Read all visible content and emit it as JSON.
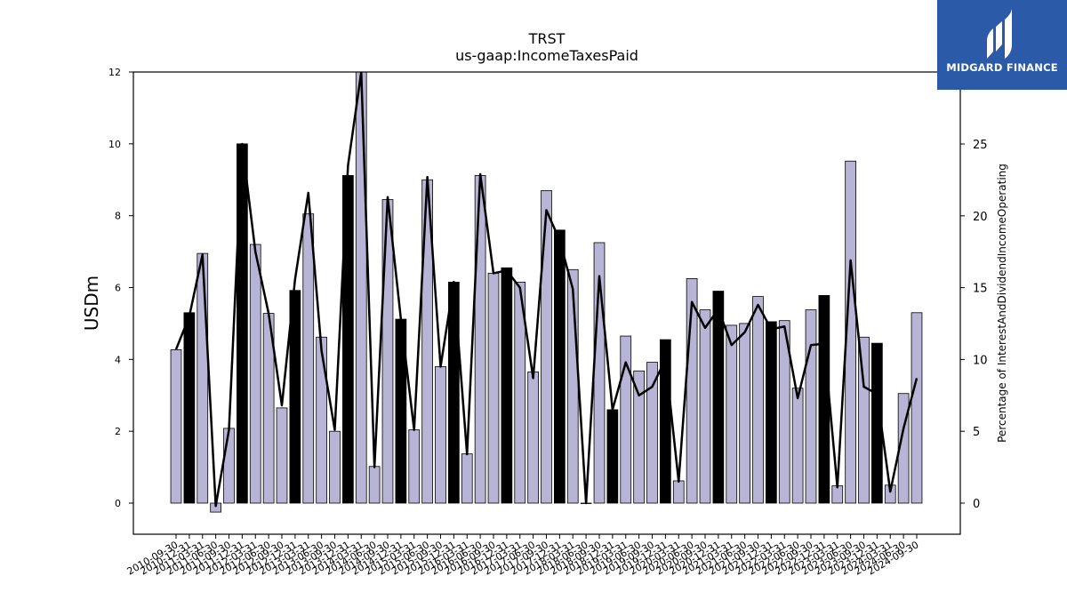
{
  "brand": {
    "name": "MIDGARD FINANCE",
    "bg_color": "#2b5aa8"
  },
  "chart_data": {
    "type": "bar",
    "title": "TRST",
    "subtitle": "us-gaap:IncomeTaxesPaid",
    "ylabel": "USDm",
    "y2label": "Percentage of InterestAndDividendIncomeOperating",
    "ylim": [
      -0.85,
      12
    ],
    "y2lim": [
      -2.1,
      30
    ],
    "yticks": [
      0,
      2,
      4,
      6,
      8,
      10,
      12
    ],
    "y2ticks": [
      0,
      5,
      10,
      15,
      20,
      25
    ],
    "categories": [
      "2010-09-30",
      "2010-12-31",
      "2011-03-31",
      "2011-06-30",
      "2011-09-30",
      "2011-12-31",
      "2012-03-31",
      "2012-06-30",
      "2012-09-30",
      "2012-12-31",
      "2013-03-31",
      "2013-06-30",
      "2013-09-30",
      "2013-12-31",
      "2014-03-31",
      "2014-06-30",
      "2014-09-30",
      "2014-12-31",
      "2015-03-31",
      "2015-06-30",
      "2015-09-30",
      "2015-12-31",
      "2016-03-31",
      "2016-06-30",
      "2016-09-30",
      "2016-12-31",
      "2017-03-31",
      "2017-06-30",
      "2017-09-30",
      "2017-12-31",
      "2018-03-31",
      "2018-06-30",
      "2018-09-30",
      "2018-12-31",
      "2019-03-31",
      "2019-06-30",
      "2019-09-30",
      "2019-12-31",
      "2020-03-31",
      "2020-06-30",
      "2020-09-30",
      "2020-12-31",
      "2021-03-31",
      "2021-06-30",
      "2021-09-30",
      "2021-12-31",
      "2022-03-31",
      "2022-06-30",
      "2022-09-30",
      "2022-12-31",
      "2023-03-31",
      "2023-06-30",
      "2023-09-30",
      "2023-12-31",
      "2024-03-31",
      "2024-06-30",
      "2024-09-30"
    ],
    "xtick_labels": [
      "2010-09-30",
      "2010-12-31",
      "2011-03-31",
      "2011-06-30",
      "2011-09-30",
      "2011-12-31",
      "2012-03-31",
      "2012-06-30",
      "2012-09-30",
      "2012-12-31",
      "2013-03-31",
      "2013-06-30",
      "2013-09-30",
      "2013-12-31",
      "2014-03-31",
      "2014-06-30",
      "2014-09-30",
      "2014-12-31",
      "2015-03-31",
      "2015-06-30",
      "2015-09-30",
      "2015-12-31",
      "2016-03-31",
      "2016-06-30",
      "2016-09-30",
      "2016-12-31",
      "2017-03-31",
      "2017-06-30",
      "2017-09-30",
      "2017-12-31",
      "2018-03-31",
      "2018-06-30",
      "2018-09-30",
      "2018-12-31",
      "2019-03-31",
      "2019-06-30",
      "2019-09-30",
      "2019-12-31",
      "2020-03-31",
      "2020-06-30",
      "2020-09-30",
      "2020-12-31",
      "2021-03-31",
      "2021-06-30",
      "2021-09-30",
      "2021-12-31",
      "2022-03-31",
      "2022-06-30",
      "2022-09-30",
      "2022-12-31",
      "2023-03-31",
      "2023-06-30",
      "2023-09-30",
      "2023-12-31",
      "2024-03-31",
      "2024-06-30",
      "2024-09-30"
    ],
    "series": [
      {
        "kind": "bar",
        "axis": "left",
        "values": [
          4.27,
          5.3,
          6.95,
          -0.25,
          2.08,
          10.0,
          7.2,
          5.28,
          2.65,
          5.92,
          8.05,
          4.62,
          2.0,
          9.12,
          12.0,
          1.02,
          8.45,
          5.12,
          2.04,
          9.0,
          3.8,
          6.15,
          1.37,
          9.12,
          6.4,
          6.55,
          6.15,
          3.65,
          8.7,
          7.6,
          6.5,
          0.0,
          7.25,
          2.6,
          4.65,
          3.68,
          3.92,
          4.55,
          0.62,
          6.25,
          5.38,
          5.9,
          4.95,
          5.0,
          5.75,
          5.05,
          5.08,
          3.2,
          5.38,
          5.78,
          0.48,
          9.52,
          4.62,
          4.45,
          0.5,
          3.05,
          5.3
        ],
        "highlight": [
          false,
          true,
          false,
          false,
          false,
          true,
          false,
          false,
          false,
          true,
          false,
          false,
          false,
          true,
          false,
          false,
          false,
          true,
          false,
          false,
          false,
          true,
          false,
          false,
          false,
          true,
          false,
          false,
          false,
          true,
          false,
          false,
          false,
          true,
          false,
          false,
          false,
          true,
          false,
          false,
          false,
          true,
          false,
          false,
          false,
          true,
          false,
          false,
          false,
          true,
          false,
          false,
          false,
          true,
          false,
          false,
          false
        ],
        "color": "#b8b4d6",
        "highlight_color": "#000000"
      },
      {
        "kind": "line",
        "axis": "right",
        "color": "#000000",
        "values": [
          10.7,
          13.0,
          17.3,
          -0.2,
          5.1,
          25.0,
          17.5,
          13.2,
          6.8,
          15.6,
          21.6,
          10.6,
          5.1,
          23.5,
          30.0,
          2.5,
          21.3,
          12.8,
          5.1,
          22.7,
          9.5,
          15.4,
          3.4,
          22.9,
          16.0,
          16.2,
          15.0,
          8.7,
          20.4,
          18.3,
          14.9,
          0.0,
          15.8,
          6.5,
          9.8,
          7.5,
          8.1,
          10.0,
          1.5,
          14.0,
          12.2,
          13.5,
          11.0,
          11.9,
          13.8,
          12.1,
          12.3,
          7.3,
          11.0,
          11.1,
          1.1,
          16.9,
          8.1,
          7.6,
          0.8,
          5.2,
          8.7
        ]
      }
    ],
    "grid": false,
    "legend": "none"
  }
}
